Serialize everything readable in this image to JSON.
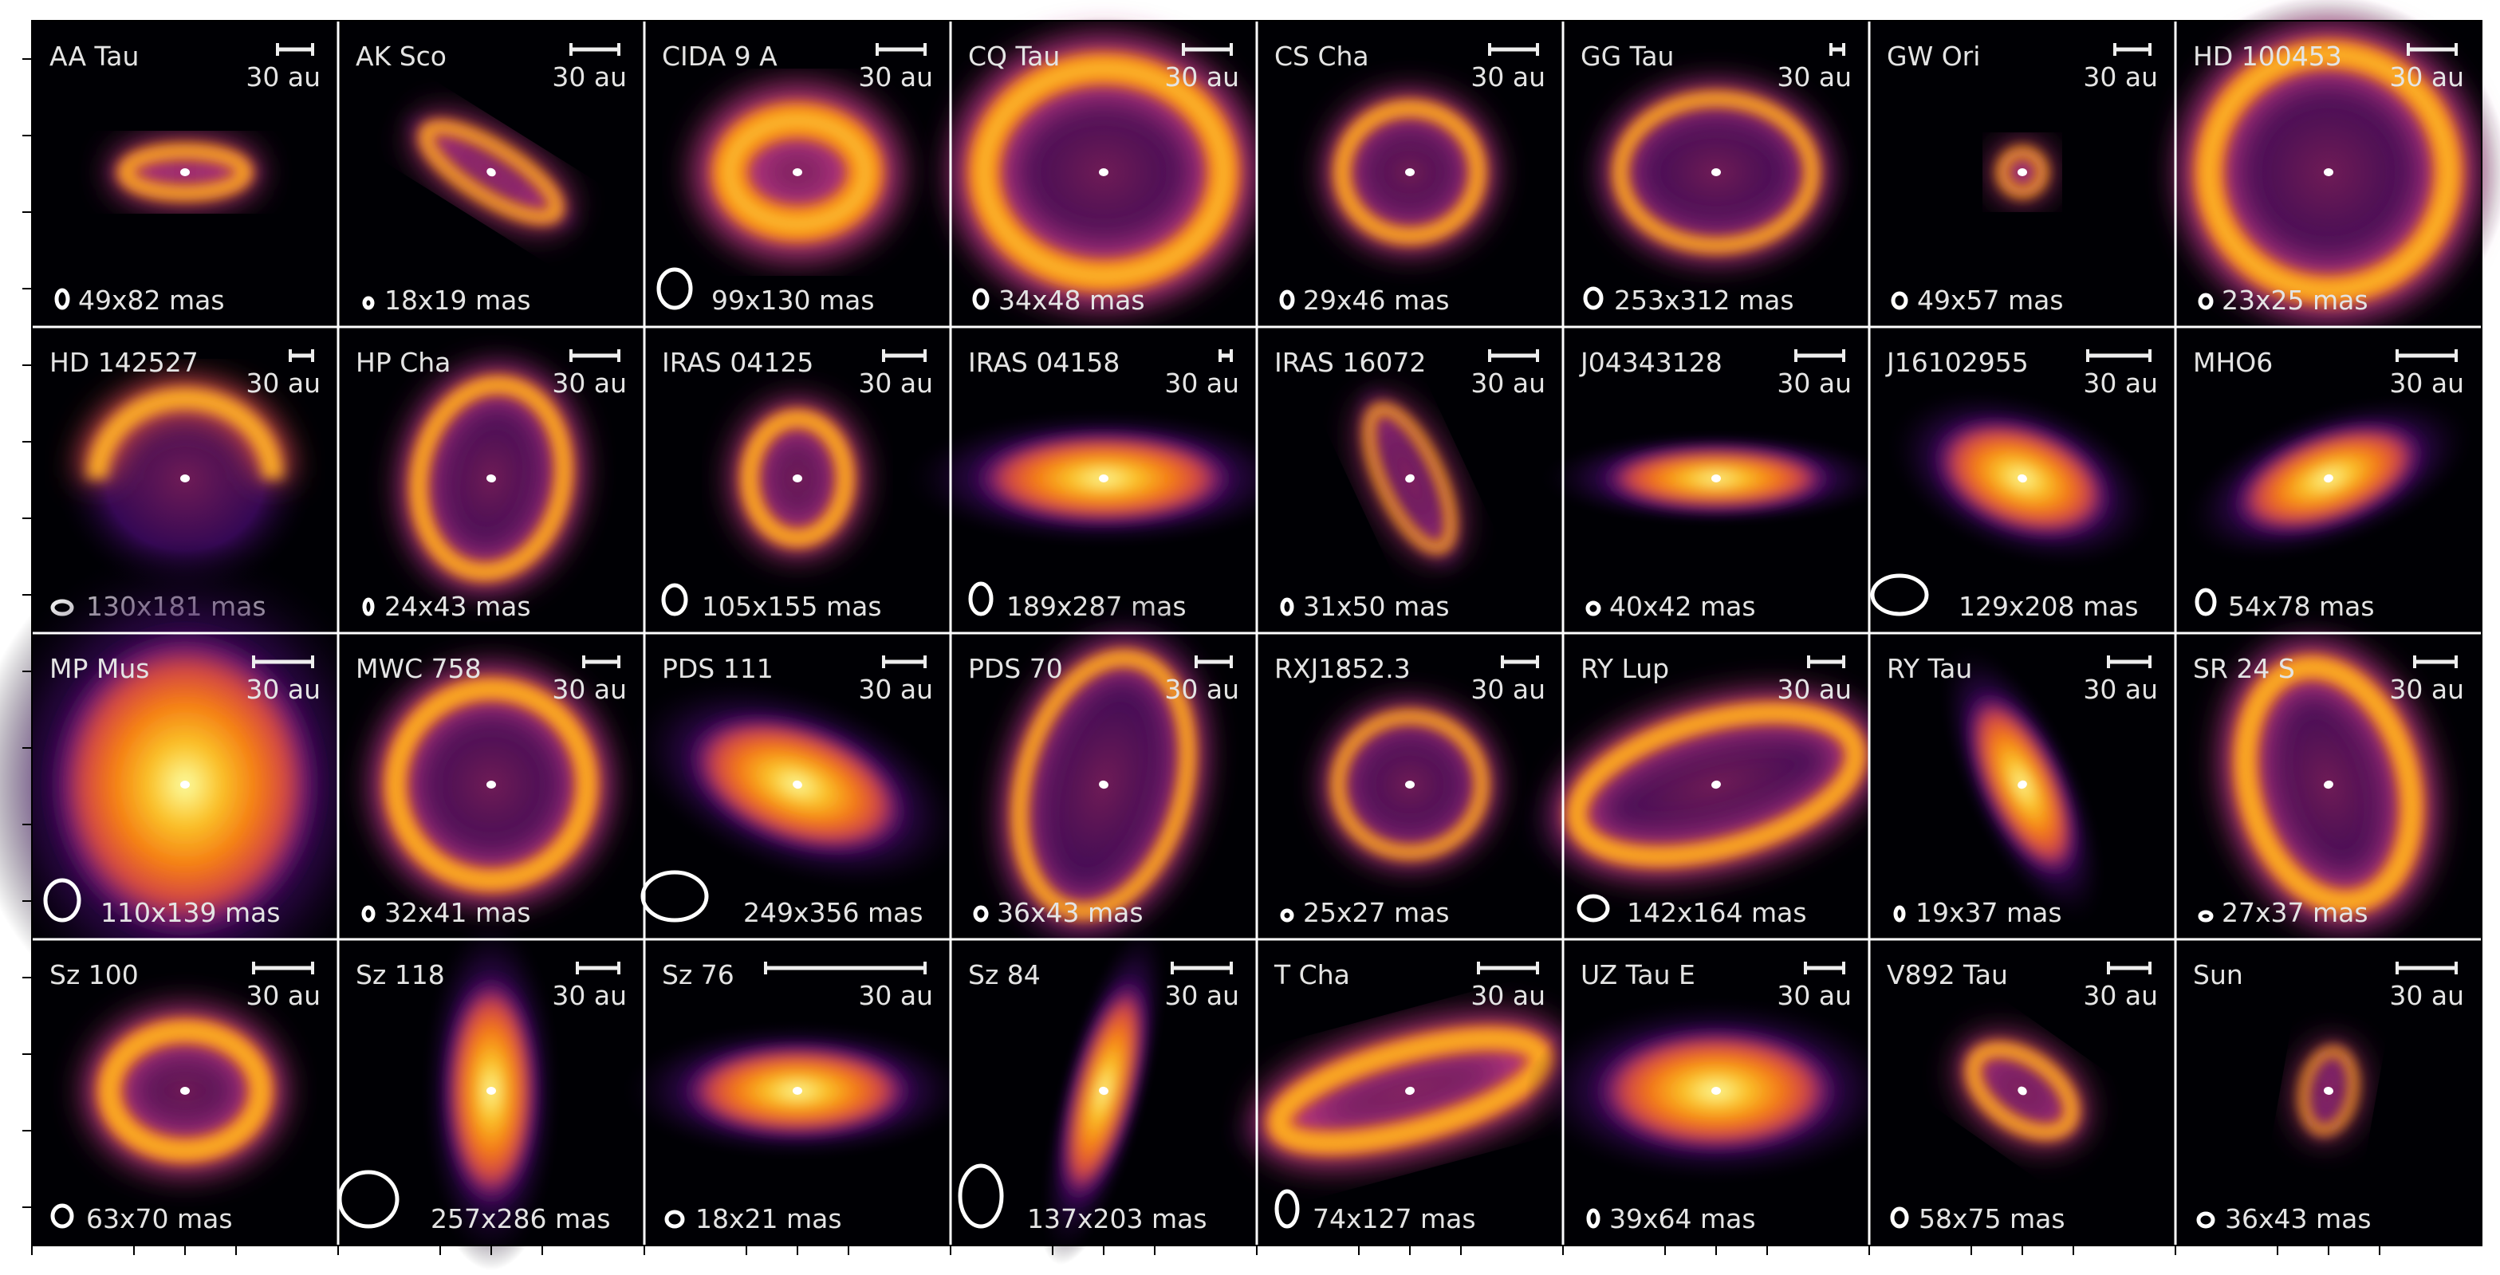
{
  "panels": [
    {
      "name": "AA Tau",
      "scale_label": "30 au",
      "beam": "49x82 mas"
    },
    {
      "name": "AK Sco",
      "scale_label": "30 au",
      "beam": "18x19 mas"
    },
    {
      "name": "CIDA 9 A",
      "scale_label": "30 au",
      "beam": "99x130 mas"
    },
    {
      "name": "CQ Tau",
      "scale_label": "30 au",
      "beam": "34x48 mas"
    },
    {
      "name": "CS Cha",
      "scale_label": "30 au",
      "beam": "29x46 mas"
    },
    {
      "name": "GG Tau",
      "scale_label": "30 au",
      "beam": "253x312 mas"
    },
    {
      "name": "GW Ori",
      "scale_label": "30 au",
      "beam": "49x57 mas"
    },
    {
      "name": "HD 100453",
      "scale_label": "30 au",
      "beam": "23x25 mas"
    },
    {
      "name": "HD 142527",
      "scale_label": "30 au",
      "beam": "130x181 mas"
    },
    {
      "name": "HP Cha",
      "scale_label": "30 au",
      "beam": "24x43 mas"
    },
    {
      "name": "IRAS 04125",
      "scale_label": "30 au",
      "beam": "105x155 mas"
    },
    {
      "name": "IRAS 04158",
      "scale_label": "30 au",
      "beam": "189x287 mas"
    },
    {
      "name": "IRAS 16072",
      "scale_label": "30 au",
      "beam": "31x50 mas"
    },
    {
      "name": "J04343128",
      "scale_label": "30 au",
      "beam": "40x42 mas"
    },
    {
      "name": "J16102955",
      "scale_label": "30 au",
      "beam": "129x208 mas"
    },
    {
      "name": "MHO6",
      "scale_label": "30 au",
      "beam": "54x78 mas"
    },
    {
      "name": "MP Mus",
      "scale_label": "30 au",
      "beam": "110x139 mas"
    },
    {
      "name": "MWC 758",
      "scale_label": "30 au",
      "beam": "32x41 mas"
    },
    {
      "name": "PDS 111",
      "scale_label": "30 au",
      "beam": "249x356 mas"
    },
    {
      "name": "PDS 70",
      "scale_label": "30 au",
      "beam": "36x43 mas"
    },
    {
      "name": "RXJ1852.3",
      "scale_label": "30 au",
      "beam": "25x27 mas"
    },
    {
      "name": "RY Lup",
      "scale_label": "30 au",
      "beam": "142x164 mas"
    },
    {
      "name": "RY Tau",
      "scale_label": "30 au",
      "beam": "19x37 mas"
    },
    {
      "name": "SR 24 S",
      "scale_label": "30 au",
      "beam": "27x37 mas"
    },
    {
      "name": "Sz 100",
      "scale_label": "30 au",
      "beam": "63x70 mas"
    },
    {
      "name": "Sz 118",
      "scale_label": "30 au",
      "beam": "257x286 mas"
    },
    {
      "name": "Sz 76",
      "scale_label": "30 au",
      "beam": "18x21 mas"
    },
    {
      "name": "Sz 84",
      "scale_label": "30 au",
      "beam": "137x203 mas"
    },
    {
      "name": "T Cha",
      "scale_label": "30 au",
      "beam": "74x127 mas"
    },
    {
      "name": "UZ Tau E",
      "scale_label": "30 au",
      "beam": "39x64 mas"
    },
    {
      "name": "V892 Tau",
      "scale_label": "30 au",
      "beam": "58x75 mas"
    },
    {
      "name": "Sun",
      "scale_label": "30 au",
      "beam": "36x43 mas"
    }
  ]
}
